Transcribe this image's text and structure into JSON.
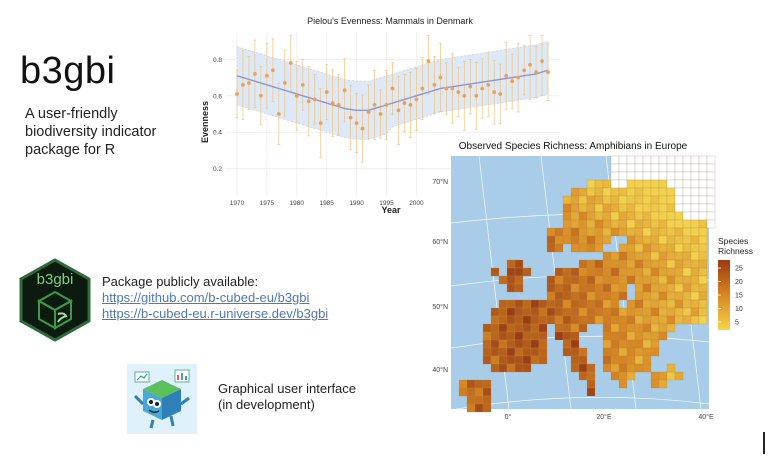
{
  "slide": {
    "title": "b3gbi",
    "tagline": "A user-friendly biodiversity indicator package for R",
    "package_heading": "Package publicly available:",
    "link_github": "https://github.com/b-cubed-eu/b3gbi",
    "link_runiverse": "https://b-cubed-eu.r-universe.dev/b3gbi",
    "gui_line1": "Graphical user interface",
    "gui_line2": "(in development)",
    "logo_text": "b3gbi"
  },
  "chart_data": [
    {
      "type": "scatter",
      "title": "Pielou's Evenness: Mammals in Denmark",
      "xlabel": "Year",
      "ylabel": "Evenness",
      "xlim": [
        1968,
        2024
      ],
      "ylim": [
        0.05,
        0.95
      ],
      "xticks": [
        1970,
        1975,
        1980,
        1985,
        1990,
        1995,
        2000
      ],
      "yticks": [
        0.2,
        0.4,
        0.6,
        0.8
      ],
      "point_color": "#f0a24a",
      "trend_color": "#8c95d6",
      "band_color": "#dde9f6",
      "x": [
        1970,
        1971,
        1972,
        1973,
        1974,
        1975,
        1976,
        1977,
        1978,
        1979,
        1980,
        1981,
        1982,
        1983,
        1984,
        1985,
        1986,
        1987,
        1988,
        1989,
        1990,
        1991,
        1992,
        1993,
        1994,
        1995,
        1996,
        1997,
        1998,
        1999,
        2000,
        2001,
        2002,
        2003,
        2004,
        2005,
        2006,
        2007,
        2008,
        2009,
        2010,
        2011,
        2012,
        2013,
        2014,
        2015,
        2016,
        2017,
        2018,
        2019,
        2020,
        2021,
        2022
      ],
      "y": [
        0.61,
        0.66,
        0.67,
        0.72,
        0.6,
        0.71,
        0.74,
        0.5,
        0.67,
        0.78,
        0.6,
        0.66,
        0.57,
        0.58,
        0.45,
        0.62,
        0.56,
        0.55,
        0.63,
        0.48,
        0.45,
        0.42,
        0.51,
        0.55,
        0.5,
        0.55,
        0.64,
        0.52,
        0.56,
        0.55,
        0.58,
        0.64,
        0.79,
        0.66,
        0.7,
        0.64,
        0.64,
        0.62,
        0.6,
        0.65,
        0.6,
        0.64,
        0.66,
        0.62,
        0.61,
        0.71,
        0.68,
        0.7,
        0.74,
        0.77,
        0.73,
        0.79,
        0.73
      ],
      "trend": [
        0.71,
        0.7,
        0.69,
        0.68,
        0.67,
        0.66,
        0.65,
        0.64,
        0.63,
        0.62,
        0.61,
        0.6,
        0.59,
        0.58,
        0.57,
        0.56,
        0.55,
        0.54,
        0.53,
        0.525,
        0.52,
        0.52,
        0.52,
        0.53,
        0.54,
        0.55,
        0.56,
        0.57,
        0.58,
        0.59,
        0.6,
        0.61,
        0.62,
        0.63,
        0.64,
        0.645,
        0.65,
        0.655,
        0.66,
        0.665,
        0.67,
        0.675,
        0.68,
        0.685,
        0.69,
        0.695,
        0.7,
        0.705,
        0.71,
        0.715,
        0.72,
        0.73,
        0.74
      ]
    },
    {
      "type": "heatmap",
      "title": "Observed Species Richness: Amphibians in Europe",
      "legend_title_line1": "Species",
      "legend_title_line2": "Richness",
      "legend_ticks": [
        25,
        20,
        15,
        10,
        5
      ],
      "lat_labels": [
        "70°N",
        "60°N",
        "50°N",
        "40°N"
      ],
      "lon_labels": [
        "0°",
        "20°E",
        "40°E"
      ],
      "ocean_color": "#a9cde8",
      "low_color": "#f5d44a",
      "high_color": "#9a3a10"
    }
  ]
}
